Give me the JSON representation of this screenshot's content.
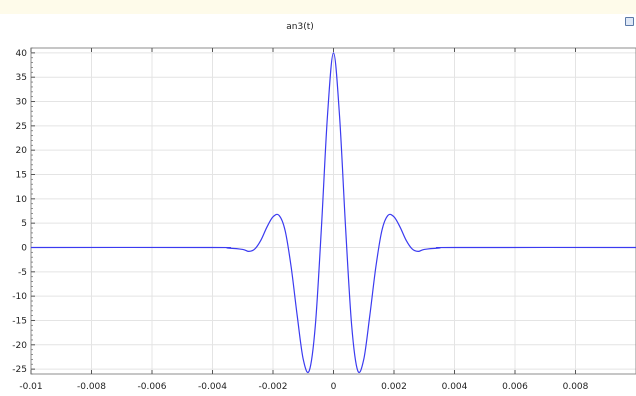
{
  "chart_data": {
    "type": "line",
    "title": "an3(t)",
    "xlabel": "",
    "ylabel": "",
    "xlim": [
      -0.01,
      0.01
    ],
    "ylim": [
      -26,
      41
    ],
    "x_ticks": [
      -0.01,
      -0.008,
      -0.006,
      -0.004,
      -0.002,
      0,
      0.002,
      0.004,
      0.006,
      0.008
    ],
    "x_tick_labels": [
      "-0.01",
      "-0.008",
      "-0.006",
      "-0.004",
      "-0.002",
      "0",
      "0.002",
      "0.004",
      "0.006",
      "0.008"
    ],
    "y_ticks": [
      -25,
      -20,
      -15,
      -10,
      -5,
      0,
      5,
      10,
      15,
      20,
      25,
      30,
      35,
      40
    ],
    "y_tick_labels": [
      "-25",
      "-20",
      "-15",
      "-10",
      "-5",
      "0",
      "5",
      "10",
      "15",
      "20",
      "25",
      "30",
      "35",
      "40"
    ],
    "grid": true,
    "line_color": "#3b3bf0",
    "series": [
      {
        "x": [
          -0.01,
          -0.004,
          -0.0035,
          -0.003,
          -0.0028,
          -0.0026,
          -0.0024,
          -0.0022,
          -0.002,
          -0.0018,
          -0.0016,
          -0.0014,
          -0.0012,
          -0.001,
          -0.0008,
          -0.0006,
          -0.0004,
          -0.0002,
          0,
          0.0002,
          0.0004,
          0.0006,
          0.0008,
          0.001,
          0.0012,
          0.0014,
          0.0016,
          0.0018,
          0.002,
          0.0022,
          0.0024,
          0.0026,
          0.0028,
          0.003,
          0.0035,
          0.004,
          0.01
        ],
        "y": [
          0,
          0,
          -0.1,
          -0.4,
          -0.8,
          -0.3,
          1.5,
          4.2,
          6.3,
          6.6,
          3.5,
          -4,
          -14,
          -23,
          -25.3,
          -16,
          4,
          27,
          40,
          27,
          4,
          -16,
          -25.3,
          -23,
          -14,
          -4,
          3.5,
          6.6,
          6.3,
          4.2,
          1.5,
          -0.3,
          -0.8,
          -0.4,
          -0.1,
          0,
          0
        ]
      }
    ]
  }
}
